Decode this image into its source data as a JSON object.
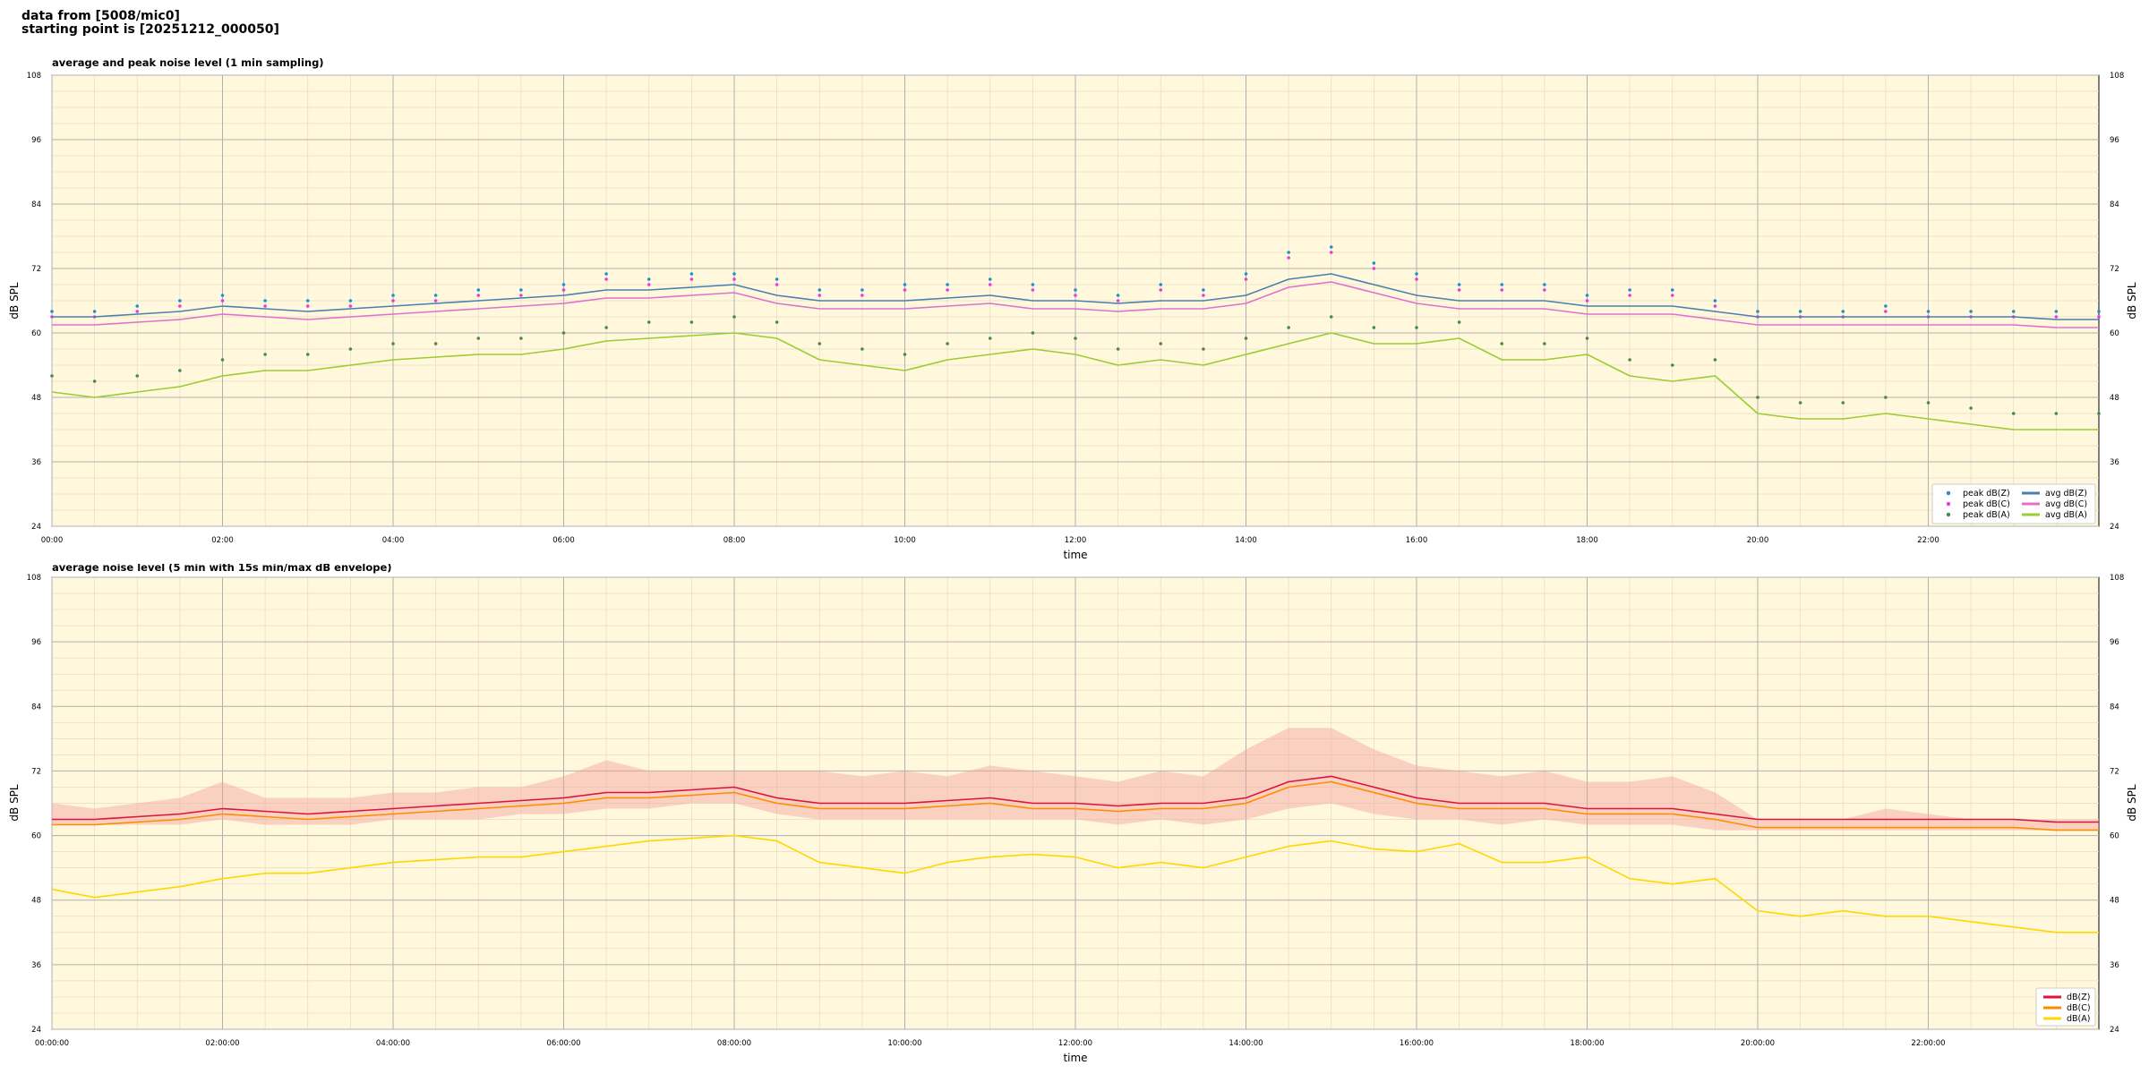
{
  "header": {
    "line1": "data from [5008/mic0]",
    "line2": "starting point is [20251212_000050]"
  },
  "colors": {
    "background": "#fff8dc",
    "grid_major": "#b0b0b0",
    "grid_minor": "#e6dcc0",
    "peak_z": "#1f8fd0",
    "peak_c": "#e040e0",
    "peak_a": "#4a8a4a",
    "avg_z": "#4a7fb0",
    "avg_c": "#e070d0",
    "avg_a": "#9acd32",
    "db_z": "#dc143c",
    "db_c": "#ff8c00",
    "db_a": "#ffd700",
    "envelope": "#f4a0a0"
  },
  "chart_data": [
    {
      "type": "line",
      "title": "average and peak noise level (1 min sampling)",
      "xlabel": "time",
      "ylabel": "dB SPL",
      "ylabel_right": "dB SPL",
      "xlim_hours": [
        0,
        24
      ],
      "ylim": [
        24,
        108
      ],
      "yticks": [
        "24",
        "36",
        "48",
        "60",
        "72",
        "84",
        "96",
        "108"
      ],
      "xticks": [
        "00:00",
        "02:00",
        "04:00",
        "06:00",
        "08:00",
        "10:00",
        "12:00",
        "14:00",
        "16:00",
        "18:00",
        "20:00",
        "22:00"
      ],
      "grid": true,
      "legend_position": "lower-right",
      "x_hours": [
        0,
        0.5,
        1,
        1.5,
        2,
        2.5,
        3,
        3.5,
        4,
        4.5,
        5,
        5.5,
        6,
        6.5,
        7,
        7.5,
        8,
        8.5,
        9,
        9.5,
        10,
        10.5,
        11,
        11.5,
        12,
        12.5,
        13,
        13.5,
        14,
        14.5,
        15,
        15.5,
        16,
        16.5,
        17,
        17.5,
        18,
        18.5,
        19,
        19.5,
        20,
        20.5,
        21,
        21.5,
        22,
        22.5,
        23,
        23.5,
        24
      ],
      "series": [
        {
          "name": "avg dB(Z)",
          "style": "line",
          "values": [
            63,
            63,
            63.5,
            64,
            65,
            64.5,
            64,
            64.5,
            65,
            65.5,
            66,
            66.5,
            67,
            68,
            68,
            68.5,
            69,
            67,
            66,
            66,
            66,
            66.5,
            67,
            66,
            66,
            65.5,
            66,
            66,
            67,
            70,
            71,
            69,
            67,
            66,
            66,
            66,
            65,
            65,
            65,
            64,
            63,
            63,
            63,
            63,
            63,
            63,
            63,
            62.5,
            62.5
          ]
        },
        {
          "name": "avg dB(C)",
          "style": "line",
          "values": [
            61.5,
            61.5,
            62,
            62.5,
            63.5,
            63,
            62.5,
            63,
            63.5,
            64,
            64.5,
            65,
            65.5,
            66.5,
            66.5,
            67,
            67.5,
            65.5,
            64.5,
            64.5,
            64.5,
            65,
            65.5,
            64.5,
            64.5,
            64,
            64.5,
            64.5,
            65.5,
            68.5,
            69.5,
            67.5,
            65.5,
            64.5,
            64.5,
            64.5,
            63.5,
            63.5,
            63.5,
            62.5,
            61.5,
            61.5,
            61.5,
            61.5,
            61.5,
            61.5,
            61.5,
            61,
            61
          ]
        },
        {
          "name": "avg dB(A)",
          "style": "line",
          "values": [
            49,
            48,
            49,
            50,
            52,
            53,
            53,
            54,
            55,
            55.5,
            56,
            56,
            57,
            58.5,
            59,
            59.5,
            60,
            59,
            55,
            54,
            53,
            55,
            56,
            57,
            56,
            54,
            55,
            54,
            56,
            58,
            60,
            58,
            58,
            59,
            55,
            55,
            56,
            52,
            51,
            52,
            45,
            44,
            44,
            45,
            44,
            43,
            42,
            42,
            42
          ]
        },
        {
          "name": "peak dB(Z)",
          "style": "dots",
          "values": [
            64,
            64,
            65,
            66,
            67,
            66,
            66,
            66,
            67,
            67,
            68,
            68,
            69,
            71,
            70,
            71,
            71,
            70,
            68,
            68,
            69,
            69,
            70,
            69,
            68,
            67,
            69,
            68,
            71,
            75,
            76,
            73,
            71,
            69,
            69,
            69,
            67,
            68,
            68,
            66,
            64,
            64,
            64,
            65,
            64,
            64,
            64,
            64,
            64
          ]
        },
        {
          "name": "peak dB(C)",
          "style": "dots",
          "values": [
            63,
            63,
            64,
            65,
            66,
            65,
            65,
            65,
            66,
            66,
            67,
            67,
            68,
            70,
            69,
            70,
            70,
            69,
            67,
            67,
            68,
            68,
            69,
            68,
            67,
            66,
            68,
            67,
            70,
            74,
            75,
            72,
            70,
            68,
            68,
            68,
            66,
            67,
            67,
            65,
            63,
            63,
            63,
            64,
            63,
            63,
            63,
            63,
            63
          ]
        },
        {
          "name": "peak dB(A)",
          "style": "dots",
          "values": [
            52,
            51,
            52,
            53,
            55,
            56,
            56,
            57,
            58,
            58,
            59,
            59,
            60,
            61,
            62,
            62,
            63,
            62,
            58,
            57,
            56,
            58,
            59,
            60,
            59,
            57,
            58,
            57,
            59,
            61,
            63,
            61,
            61,
            62,
            58,
            58,
            59,
            55,
            54,
            55,
            48,
            47,
            47,
            48,
            47,
            46,
            45,
            45,
            45
          ]
        }
      ],
      "legend": [
        {
          "label": "peak dB(Z)",
          "kind": "dot",
          "colorKey": "peak_z"
        },
        {
          "label": "avg dB(Z)",
          "kind": "line",
          "colorKey": "avg_z"
        },
        {
          "label": "peak dB(C)",
          "kind": "dot",
          "colorKey": "peak_c"
        },
        {
          "label": "avg dB(C)",
          "kind": "line",
          "colorKey": "avg_c"
        },
        {
          "label": "peak dB(A)",
          "kind": "dot",
          "colorKey": "peak_a"
        },
        {
          "label": "avg dB(A)",
          "kind": "line",
          "colorKey": "avg_a"
        }
      ]
    },
    {
      "type": "line",
      "title": "average noise level (5 min with 15s min/max dB envelope)",
      "xlabel": "time",
      "ylabel": "dB SPL",
      "ylabel_right": "dB SPL",
      "xlim_hours": [
        0,
        24
      ],
      "ylim": [
        24,
        108
      ],
      "yticks": [
        "24",
        "36",
        "48",
        "60",
        "72",
        "84",
        "96",
        "108"
      ],
      "xticks": [
        "00:00:00",
        "02:00:00",
        "04:00:00",
        "06:00:00",
        "08:00:00",
        "10:00:00",
        "12:00:00",
        "14:00:00",
        "16:00:00",
        "18:00:00",
        "20:00:00",
        "22:00:00"
      ],
      "grid": true,
      "legend_position": "lower-right",
      "x_hours": [
        0,
        0.5,
        1,
        1.5,
        2,
        2.5,
        3,
        3.5,
        4,
        4.5,
        5,
        5.5,
        6,
        6.5,
        7,
        7.5,
        8,
        8.5,
        9,
        9.5,
        10,
        10.5,
        11,
        11.5,
        12,
        12.5,
        13,
        13.5,
        14,
        14.5,
        15,
        15.5,
        16,
        16.5,
        17,
        17.5,
        18,
        18.5,
        19,
        19.5,
        20,
        20.5,
        21,
        21.5,
        22,
        22.5,
        23,
        23.5,
        24
      ],
      "envelope_max": [
        66,
        65,
        66,
        67,
        70,
        67,
        67,
        67,
        68,
        68,
        69,
        69,
        71,
        74,
        72,
        72,
        72,
        72,
        72,
        71,
        72,
        71,
        73,
        72,
        71,
        70,
        72,
        71,
        76,
        80,
        80,
        76,
        73,
        72,
        71,
        72,
        70,
        70,
        71,
        68,
        63,
        63,
        63,
        65,
        64,
        63,
        63,
        63,
        63
      ],
      "envelope_min": [
        62,
        62,
        62,
        62,
        63,
        62,
        62,
        62,
        63,
        63,
        63,
        64,
        64,
        65,
        65,
        66,
        66,
        64,
        63,
        63,
        63,
        63,
        63,
        63,
        63,
        62,
        63,
        62,
        63,
        65,
        66,
        64,
        63,
        63,
        62,
        63,
        62,
        62,
        62,
        61,
        61,
        61,
        61,
        61,
        61,
        61,
        61,
        61,
        61
      ],
      "series": [
        {
          "name": "dB(Z)",
          "values": [
            63,
            63,
            63.5,
            64,
            65,
            64.5,
            64,
            64.5,
            65,
            65.5,
            66,
            66.5,
            67,
            68,
            68,
            68.5,
            69,
            67,
            66,
            66,
            66,
            66.5,
            67,
            66,
            66,
            65.5,
            66,
            66,
            67,
            70,
            71,
            69,
            67,
            66,
            66,
            66,
            65,
            65,
            65,
            64,
            63,
            63,
            63,
            63,
            63,
            63,
            63,
            62.5,
            62.5
          ]
        },
        {
          "name": "dB(C)",
          "values": [
            62,
            62,
            62.5,
            63,
            64,
            63.5,
            63,
            63.5,
            64,
            64.5,
            65,
            65.5,
            66,
            67,
            67,
            67.5,
            68,
            66,
            65,
            65,
            65,
            65.5,
            66,
            65,
            65,
            64.5,
            65,
            65,
            66,
            69,
            70,
            68,
            66,
            65,
            65,
            65,
            64,
            64,
            64,
            63,
            61.5,
            61.5,
            61.5,
            61.5,
            61.5,
            61.5,
            61.5,
            61,
            61
          ]
        },
        {
          "name": "dB(A)",
          "values": [
            50,
            48.5,
            49.5,
            50.5,
            52,
            53,
            53,
            54,
            55,
            55.5,
            56,
            56,
            57,
            58,
            59,
            59.5,
            60,
            59,
            55,
            54,
            53,
            55,
            56,
            56.5,
            56,
            54,
            55,
            54,
            56,
            58,
            59,
            57.5,
            57,
            58.5,
            55,
            55,
            56,
            52,
            51,
            52,
            46,
            45,
            46,
            45,
            45,
            44,
            43,
            42,
            42
          ]
        }
      ],
      "legend": [
        {
          "label": "dB(Z)",
          "kind": "line",
          "colorKey": "db_z"
        },
        {
          "label": "dB(C)",
          "kind": "line",
          "colorKey": "db_c"
        },
        {
          "label": "dB(A)",
          "kind": "line",
          "colorKey": "db_a"
        }
      ]
    }
  ]
}
